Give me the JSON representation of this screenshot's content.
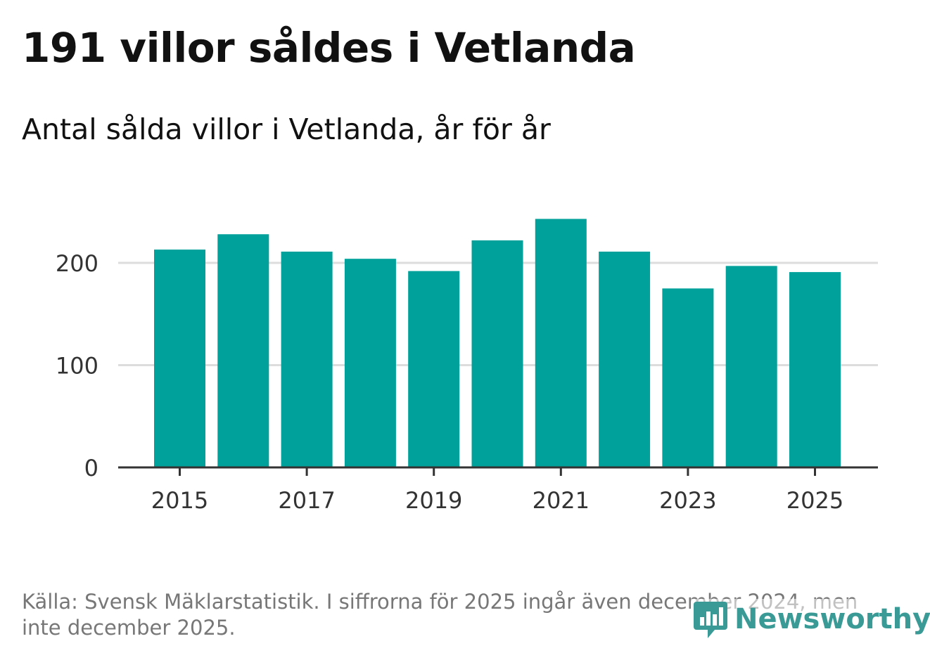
{
  "header": {
    "title": "191 villor såldes i Vetlanda",
    "subtitle": "Antal sålda villor i Vetlanda, år för år"
  },
  "footer": {
    "source_note": "Källa: Svensk Mäklarstatistik. I siffrorna för 2025 ingår även december 2024, men inte december 2025.",
    "logo_text": "Newsworthy"
  },
  "colors": {
    "bar": "#00a19a",
    "grid": "#dddddd",
    "axis": "#333333",
    "logo": "#3a9b96"
  },
  "chart_data": {
    "type": "bar",
    "title": "191 villor såldes i Vetlanda",
    "subtitle": "Antal sålda villor i Vetlanda, år för år",
    "xlabel": "",
    "ylabel": "",
    "categories": [
      "2015",
      "2016",
      "2017",
      "2018",
      "2019",
      "2020",
      "2021",
      "2022",
      "2023",
      "2024",
      "2025"
    ],
    "values": [
      213,
      228,
      211,
      204,
      192,
      222,
      243,
      211,
      175,
      197,
      191
    ],
    "x_tick_labels": [
      "2015",
      "2017",
      "2019",
      "2021",
      "2023",
      "2025"
    ],
    "y_ticks": [
      0,
      100,
      200
    ],
    "y_tick_labels": [
      "0",
      "100",
      "200"
    ],
    "ylim": [
      0,
      250
    ],
    "grid": true,
    "legend": "none"
  }
}
